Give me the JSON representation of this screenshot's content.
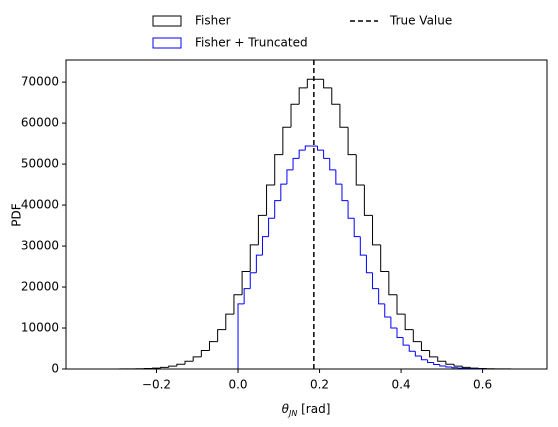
{
  "chart_data": {
    "type": "histogram",
    "xlabel": [
      "θ",
      "JN",
      " [rad]"
    ],
    "ylabel": "PDF",
    "xlim": [
      -0.422,
      0.758
    ],
    "ylim": [
      0,
      75400
    ],
    "xticks": [
      {
        "value": -0.2,
        "label": "−0.2"
      },
      {
        "value": 0,
        "label": "0.0"
      },
      0.2,
      0.4,
      0.6
    ],
    "yticks": [
      0,
      10000,
      20000,
      30000,
      40000,
      50000,
      60000,
      70000
    ],
    "grid": false,
    "series": [
      {
        "name": "Fisher",
        "color": "#000000",
        "bins": [
          -0.33,
          -0.31,
          -0.29,
          -0.27,
          -0.25,
          -0.23,
          -0.21,
          -0.19,
          -0.17,
          -0.15,
          -0.13,
          -0.11,
          -0.09,
          -0.07,
          -0.05,
          -0.03,
          -0.01,
          0.01,
          0.03,
          0.05,
          0.07,
          0.09,
          0.11,
          0.13,
          0.15,
          0.17,
          0.19,
          0.21,
          0.23,
          0.25,
          0.27,
          0.29,
          0.31,
          0.33,
          0.35,
          0.37,
          0.39,
          0.41,
          0.43,
          0.45,
          0.47,
          0.49,
          0.51,
          0.53,
          0.55,
          0.57,
          0.59,
          0.61,
          0.63,
          0.65,
          0.67,
          0.69,
          0.71
        ],
        "values": [
          4,
          8,
          17,
          33,
          65,
          123,
          226,
          401,
          693,
          1155,
          1884,
          2955,
          4510,
          6680,
          9610,
          13400,
          18130,
          23800,
          30300,
          37500,
          44900,
          52300,
          59000,
          64600,
          68600,
          70700,
          70700,
          68600,
          64600,
          59000,
          52300,
          44900,
          37500,
          30300,
          23800,
          18130,
          13400,
          9610,
          6680,
          4510,
          2955,
          1884,
          1155,
          693,
          401,
          226,
          123,
          65,
          33,
          17,
          8,
          4
        ]
      },
      {
        "name": "Fisher + Truncated",
        "color": "#0000ff",
        "bins": [
          0,
          0.015,
          0.03,
          0.045,
          0.06,
          0.075,
          0.09,
          0.105,
          0.12,
          0.135,
          0.15,
          0.165,
          0.18,
          0.195,
          0.21,
          0.225,
          0.24,
          0.255,
          0.27,
          0.285,
          0.3,
          0.315,
          0.33,
          0.345,
          0.36,
          0.375,
          0.39,
          0.405,
          0.42,
          0.435,
          0.45,
          0.465,
          0.48,
          0.495,
          0.51,
          0.525,
          0.54,
          0.555,
          0.57,
          0.585,
          0.6
        ],
        "values": [
          15900,
          19600,
          23500,
          27800,
          32300,
          36800,
          41100,
          45100,
          48600,
          51400,
          53400,
          54400,
          54400,
          53400,
          51400,
          48600,
          45100,
          41100,
          36800,
          32300,
          27800,
          23500,
          19600,
          15900,
          12700,
          10000,
          7700,
          5830,
          4340,
          3160,
          2260,
          1590,
          1100,
          740,
          490,
          320,
          205,
          129,
          80,
          48
        ]
      }
    ],
    "vline": {
      "name": "True Value",
      "x": 0.186,
      "color": "#000000"
    }
  }
}
